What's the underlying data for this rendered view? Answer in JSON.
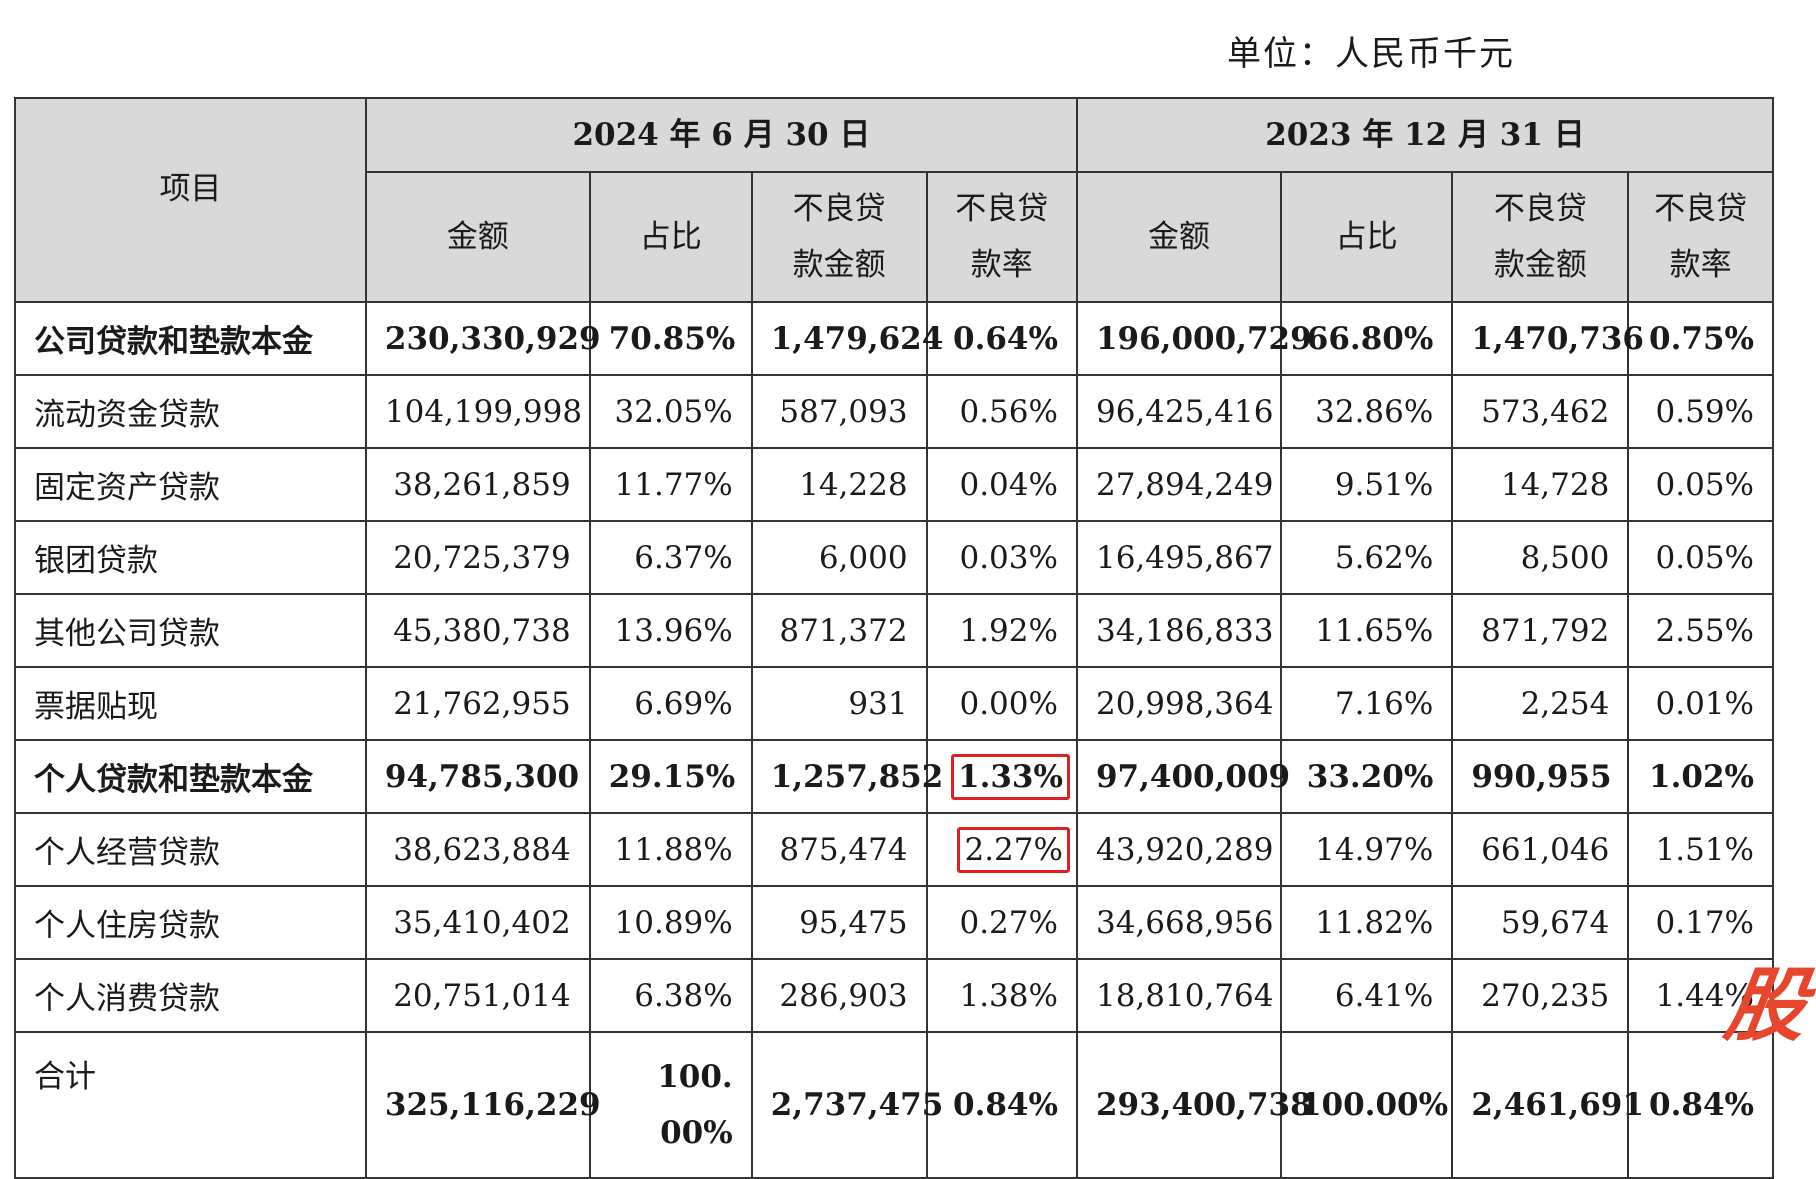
{
  "unit_label": "单位：人民币千元",
  "header": {
    "item_label": "项目",
    "period1": "2024 年 6 月 30 日",
    "period2": "2023 年 12 月 31 日",
    "cols": {
      "amount": "金额",
      "share": "占比",
      "npl_amount": "不良贷款金额",
      "npl_rate": "不良贷款率"
    }
  },
  "rows": [
    {
      "label": "公司贷款和垫款本金",
      "bold": true,
      "p1": [
        "230,330,929",
        "70.85%",
        "1,479,624",
        "0.64%"
      ],
      "p2": [
        "196,000,729",
        "66.80%",
        "1,470,736",
        "0.75%"
      ]
    },
    {
      "label": "流动资金贷款",
      "bold": false,
      "p1": [
        "104,199,998",
        "32.05%",
        "587,093",
        "0.56%"
      ],
      "p2": [
        "96,425,416",
        "32.86%",
        "573,462",
        "0.59%"
      ]
    },
    {
      "label": "固定资产贷款",
      "bold": false,
      "p1": [
        "38,261,859",
        "11.77%",
        "14,228",
        "0.04%"
      ],
      "p2": [
        "27,894,249",
        "9.51%",
        "14,728",
        "0.05%"
      ]
    },
    {
      "label": "银团贷款",
      "bold": false,
      "p1": [
        "20,725,379",
        "6.37%",
        "6,000",
        "0.03%"
      ],
      "p2": [
        "16,495,867",
        "5.62%",
        "8,500",
        "0.05%"
      ]
    },
    {
      "label": "其他公司贷款",
      "bold": false,
      "p1": [
        "45,380,738",
        "13.96%",
        "871,372",
        "1.92%"
      ],
      "p2": [
        "34,186,833",
        "11.65%",
        "871,792",
        "2.55%"
      ]
    },
    {
      "label": "票据贴现",
      "bold": false,
      "p1": [
        "21,762,955",
        "6.69%",
        "931",
        "0.00%"
      ],
      "p2": [
        "20,998,364",
        "7.16%",
        "2,254",
        "0.01%"
      ]
    },
    {
      "label": "个人贷款和垫款本金",
      "bold": true,
      "p1": [
        "94,785,300",
        "29.15%",
        "1,257,852",
        "1.33%"
      ],
      "p2": [
        "97,400,009",
        "33.20%",
        "990,955",
        "1.02%"
      ]
    },
    {
      "label": "个人经营贷款",
      "bold": false,
      "p1": [
        "38,623,884",
        "11.88%",
        "875,474",
        "2.27%"
      ],
      "p2": [
        "43,920,289",
        "14.97%",
        "661,046",
        "1.51%"
      ]
    },
    {
      "label": "个人住房贷款",
      "bold": false,
      "p1": [
        "35,410,402",
        "10.89%",
        "95,475",
        "0.27%"
      ],
      "p2": [
        "34,668,956",
        "11.82%",
        "59,674",
        "0.17%"
      ]
    },
    {
      "label": "个人消费贷款",
      "bold": false,
      "p1": [
        "20,751,014",
        "6.38%",
        "286,903",
        "1.38%"
      ],
      "p2": [
        "18,810,764",
        "6.41%",
        "270,235",
        "1.44%"
      ]
    }
  ],
  "total": {
    "label": "合计",
    "p1": [
      "325,116,229",
      "100.00%",
      "2,737,475",
      "0.84%"
    ],
    "p2": [
      "293,400,738",
      "100.00%",
      "2,461,691",
      "0.84%"
    ]
  },
  "highlights": [
    "1.33%",
    "2.27%"
  ],
  "highlight_color": "#e02020",
  "logo_text": "股",
  "logo_color": "#e8452d"
}
